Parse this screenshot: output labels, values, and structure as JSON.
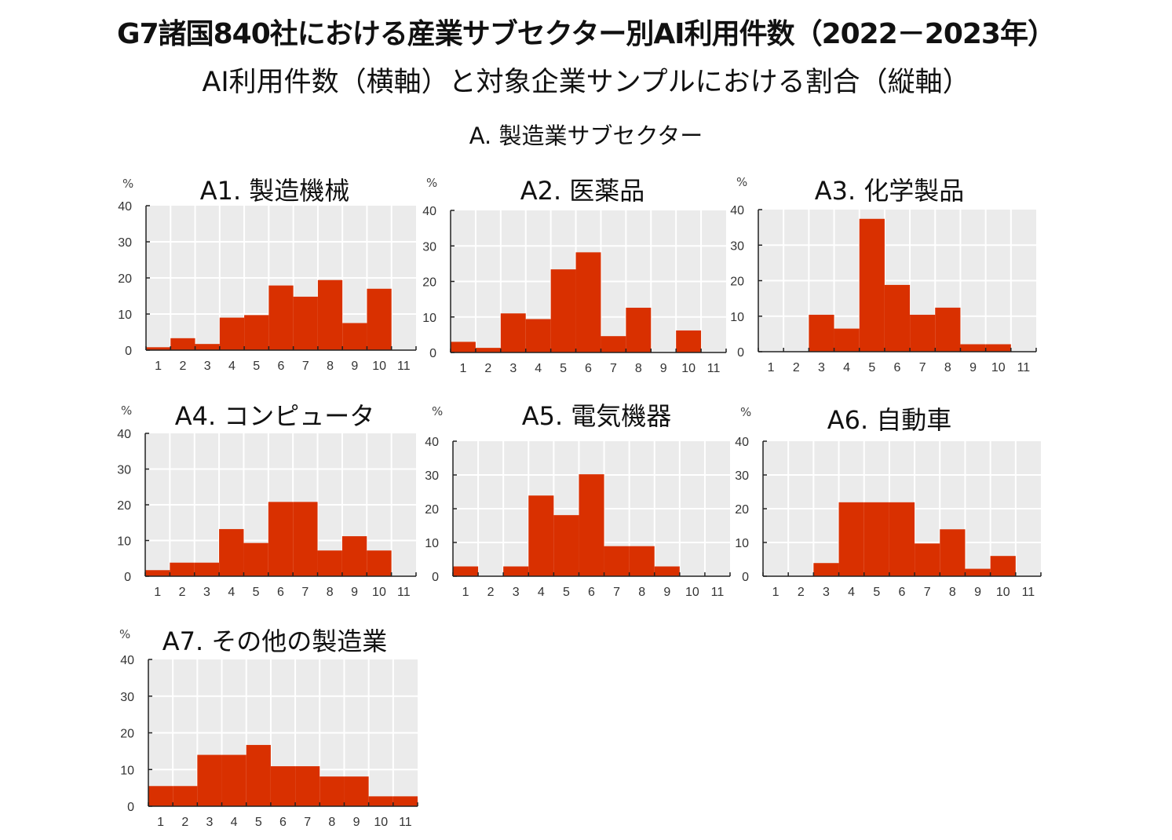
{
  "title": "G7諸国840社における産業サブセクター別AI利用件数（2022－2023年）",
  "subtitle": "AI利用件数（横軸）と対象企業サンプルにおける割合（縦軸）",
  "section": "A. 製造業サブセクター",
  "colors": {
    "bar": "#d93000",
    "plot_bg": "#ebebeb",
    "grid": "#ffffff",
    "axis": "#222222"
  },
  "chart_data": [
    {
      "type": "bar",
      "title": "A1. 製造機械",
      "ylabel": "%",
      "ylim": [
        0,
        40
      ],
      "yticks": [
        0,
        10,
        20,
        30,
        40
      ],
      "categories": [
        "1",
        "2",
        "3",
        "4",
        "5",
        "6",
        "7",
        "8",
        "9",
        "10",
        "11"
      ],
      "values": [
        0.8,
        3.3,
        1.7,
        9,
        9.7,
        17.9,
        14.8,
        19.4,
        7.5,
        17,
        0
      ],
      "grid": true
    },
    {
      "type": "bar",
      "title": "A2. 医薬品",
      "ylabel": "%",
      "ylim": [
        0,
        40
      ],
      "yticks": [
        0,
        10,
        20,
        30,
        40
      ],
      "categories": [
        "1",
        "2",
        "3",
        "4",
        "5",
        "6",
        "7",
        "8",
        "9",
        "10",
        "11"
      ],
      "values": [
        3,
        1.3,
        11,
        9.4,
        23.4,
        28.2,
        4.6,
        12.6,
        0,
        6.2,
        0
      ],
      "grid": true
    },
    {
      "type": "bar",
      "title": "A3. 化学製品",
      "ylabel": "%",
      "ylim": [
        0,
        40
      ],
      "yticks": [
        0,
        10,
        20,
        30,
        40
      ],
      "categories": [
        "1",
        "2",
        "3",
        "4",
        "5",
        "6",
        "7",
        "8",
        "9",
        "10",
        "11"
      ],
      "values": [
        0,
        0,
        10.4,
        6.5,
        37.4,
        18.8,
        10.4,
        12.4,
        2.1,
        2.1,
        0
      ],
      "grid": true
    },
    {
      "type": "bar",
      "title": "A4. コンピュータ",
      "ylabel": "%",
      "ylim": [
        0,
        40
      ],
      "yticks": [
        0,
        10,
        20,
        30,
        40
      ],
      "categories": [
        "1",
        "2",
        "3",
        "4",
        "5",
        "6",
        "7",
        "8",
        "9",
        "10",
        "11"
      ],
      "values": [
        1.7,
        3.8,
        3.8,
        13.2,
        9.3,
        20.8,
        20.8,
        7.2,
        11.2,
        7.2,
        0
      ],
      "grid": true
    },
    {
      "type": "bar",
      "title": "A5. 電気機器",
      "ylabel": "%",
      "ylim": [
        0,
        40
      ],
      "yticks": [
        0,
        10,
        20,
        30,
        40
      ],
      "categories": [
        "1",
        "2",
        "3",
        "4",
        "5",
        "6",
        "7",
        "8",
        "9",
        "10",
        "11"
      ],
      "values": [
        2.9,
        0,
        2.9,
        23.9,
        18.1,
        30.2,
        8.9,
        8.9,
        2.9,
        0,
        0
      ],
      "grid": true
    },
    {
      "type": "bar",
      "title": "A6. 自動車",
      "ylabel": "%",
      "ylim": [
        0,
        40
      ],
      "yticks": [
        0,
        10,
        20,
        30,
        40
      ],
      "categories": [
        "1",
        "2",
        "3",
        "4",
        "5",
        "6",
        "7",
        "8",
        "9",
        "10",
        "11"
      ],
      "values": [
        0,
        0,
        3.9,
        21.9,
        21.9,
        21.9,
        9.7,
        13.9,
        2.2,
        6,
        0
      ],
      "grid": true
    },
    {
      "type": "bar",
      "title": "A7. その他の製造業",
      "ylabel": "%",
      "ylim": [
        0,
        40
      ],
      "yticks": [
        0,
        10,
        20,
        30,
        40
      ],
      "categories": [
        "1",
        "2",
        "3",
        "4",
        "5",
        "6",
        "7",
        "8",
        "9",
        "10",
        "11"
      ],
      "values": [
        5.5,
        5.5,
        14,
        14,
        16.7,
        10.9,
        10.9,
        8.1,
        8.1,
        2.7,
        2.7
      ],
      "grid": true
    }
  ]
}
